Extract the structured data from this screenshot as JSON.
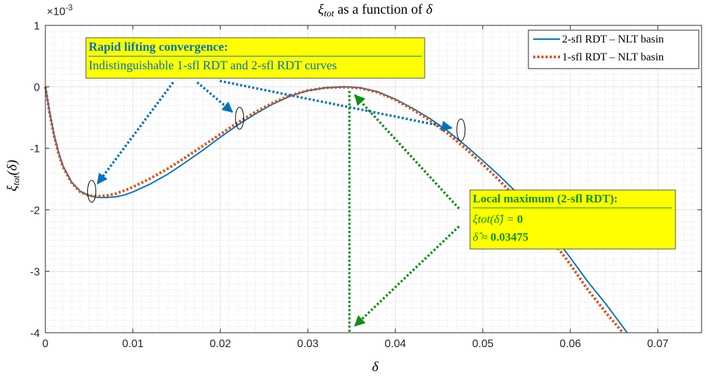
{
  "chart_data": {
    "type": "line",
    "title": "ξtot as a function of δ",
    "title_parts": {
      "main": "ξ",
      "sub": "tot",
      "mid": " as a function of ",
      "end": "δ"
    },
    "xlabel": "δ",
    "ylabel_parts": {
      "main": "ξ",
      "sub": "tot",
      "end": "(δ)"
    },
    "xlim": [
      0,
      0.075
    ],
    "ylim": [
      -4,
      1
    ],
    "y_exponent_label": "×10",
    "y_exponent": "-3",
    "x_ticks": [
      0,
      0.01,
      0.02,
      0.03,
      0.04,
      0.05,
      0.06,
      0.07
    ],
    "x_tick_labels": [
      "0",
      "0.01",
      "0.02",
      "0.03",
      "0.04",
      "0.05",
      "0.06",
      "0.07"
    ],
    "y_ticks": [
      1,
      0,
      -1,
      -2,
      -3,
      -4
    ],
    "y_tick_labels": [
      "1",
      "0",
      "-1",
      "-2",
      "-3",
      "-4"
    ],
    "grid": true,
    "minor_grid": true,
    "legend_position": "top-right",
    "series": [
      {
        "name": "2-sfl RDT – NLT basin",
        "color": "#0072bd",
        "style": "solid",
        "x": [
          0,
          0.0005,
          0.001,
          0.0015,
          0.002,
          0.003,
          0.004,
          0.005,
          0.006,
          0.007,
          0.008,
          0.009,
          0.01,
          0.012,
          0.014,
          0.016,
          0.018,
          0.02,
          0.022,
          0.024,
          0.026,
          0.028,
          0.03,
          0.032,
          0.034,
          0.03475,
          0.036,
          0.038,
          0.04,
          0.042,
          0.044,
          0.046,
          0.048,
          0.05,
          0.052,
          0.054,
          0.056,
          0.058,
          0.06,
          0.062,
          0.064,
          0.0665
        ],
        "values": [
          0,
          -0.42,
          -0.78,
          -1.06,
          -1.28,
          -1.55,
          -1.7,
          -1.77,
          -1.8,
          -1.8,
          -1.79,
          -1.76,
          -1.71,
          -1.58,
          -1.42,
          -1.23,
          -1.03,
          -0.82,
          -0.62,
          -0.44,
          -0.28,
          -0.15,
          -0.06,
          -0.015,
          0,
          0,
          -0.015,
          -0.08,
          -0.2,
          -0.35,
          -0.52,
          -0.72,
          -0.95,
          -1.2,
          -1.46,
          -1.74,
          -2.05,
          -2.4,
          -2.78,
          -3.17,
          -3.52,
          -4
        ]
      },
      {
        "name": "1-sfl RDT – NLT basin",
        "color": "#d95319",
        "style": "dotted",
        "x": [
          0,
          0.0005,
          0.001,
          0.0015,
          0.002,
          0.003,
          0.004,
          0.005,
          0.006,
          0.007,
          0.008,
          0.009,
          0.01,
          0.012,
          0.014,
          0.016,
          0.018,
          0.02,
          0.022,
          0.024,
          0.026,
          0.028,
          0.03,
          0.032,
          0.034,
          0.036,
          0.038,
          0.04,
          0.042,
          0.044,
          0.046,
          0.048,
          0.05,
          0.052,
          0.054,
          0.056,
          0.058,
          0.06,
          0.062,
          0.064,
          0.066
        ],
        "values": [
          0,
          -0.44,
          -0.8,
          -1.08,
          -1.3,
          -1.56,
          -1.71,
          -1.77,
          -1.78,
          -1.77,
          -1.74,
          -1.69,
          -1.63,
          -1.49,
          -1.33,
          -1.15,
          -0.96,
          -0.77,
          -0.58,
          -0.41,
          -0.26,
          -0.14,
          -0.06,
          -0.015,
          -0.005,
          -0.02,
          -0.09,
          -0.21,
          -0.37,
          -0.55,
          -0.76,
          -1.0,
          -1.26,
          -1.54,
          -1.83,
          -2.15,
          -2.51,
          -2.89,
          -3.3,
          -3.66,
          -4
        ]
      }
    ],
    "annotations": {
      "convergence": {
        "title": "Rapid lifting convergence:",
        "text": "Indistinguishable 1-sfl RDT and 2-sfl RDT curves",
        "ellipses": [
          [
            0.0053,
            -1.7
          ],
          [
            0.0222,
            -0.51
          ],
          [
            0.0475,
            -0.7
          ]
        ],
        "color": "#0072bd"
      },
      "local_max": {
        "title": "Local maximum (2-sfl RDT):",
        "line1_lhs": "ξtot(δ̂) = ",
        "line1_value": "0",
        "line2_lhs": "δ̂ ≈ ",
        "line2_value": "0.03475",
        "x": 0.03475,
        "color": "#138d13"
      }
    }
  }
}
